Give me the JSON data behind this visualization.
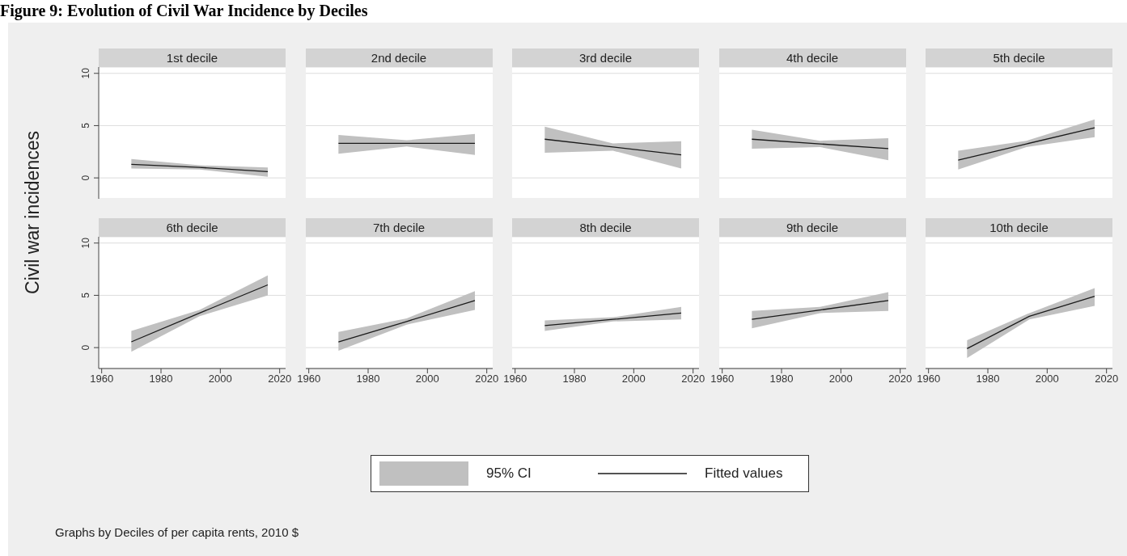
{
  "chart_data": [
    {
      "type": "line",
      "title": "1st decile",
      "x": [
        1970,
        1993,
        2016
      ],
      "xlim": [
        1959,
        2022
      ],
      "xticks": [
        1960,
        1980,
        2000,
        2020
      ],
      "ylim": [
        -2,
        10.6
      ],
      "yticks": [
        0,
        5,
        10
      ],
      "grid": "y",
      "tick_labels": "y",
      "ylabel": "Civil war incidences",
      "annotations": [
        "Figure 9: Evolution of Civil War Incidence by Deciles"
      ],
      "series": [
        {
          "color": "#1a1a1a",
          "values": [
            1.3,
            1.0,
            0.6
          ],
          "lower": [
            0.9,
            0.8,
            0.1
          ],
          "upper": [
            1.8,
            1.2,
            1.0
          ]
        }
      ]
    },
    {
      "type": "line",
      "title": "2nd decile",
      "x": [
        1970,
        1993,
        2016
      ],
      "xlim": [
        1959,
        2022
      ],
      "xticks": [
        1960,
        1980,
        2000,
        2020
      ],
      "ylim": [
        -2,
        10.6
      ],
      "yticks": [
        0,
        5,
        10
      ],
      "grid": "y",
      "tick_labels": false,
      "series": [
        {
          "color": "#1a1a1a",
          "values": [
            3.3,
            3.3,
            3.3
          ],
          "lower": [
            2.3,
            3.0,
            2.2
          ],
          "upper": [
            4.1,
            3.6,
            4.2
          ]
        }
      ]
    },
    {
      "type": "line",
      "title": "3rd decile",
      "x": [
        1970,
        1993,
        2016
      ],
      "xlim": [
        1959,
        2022
      ],
      "xticks": [
        1960,
        1980,
        2000,
        2020
      ],
      "ylim": [
        -2,
        10.6
      ],
      "yticks": [
        0,
        5,
        10
      ],
      "grid": "y",
      "tick_labels": false,
      "series": [
        {
          "color": "#1a1a1a",
          "values": [
            3.7,
            2.95,
            2.2
          ],
          "lower": [
            2.4,
            2.6,
            0.9
          ],
          "upper": [
            4.9,
            3.3,
            3.5
          ]
        }
      ]
    },
    {
      "type": "line",
      "title": "4th decile",
      "x": [
        1970,
        1993,
        2016
      ],
      "xlim": [
        1959,
        2022
      ],
      "xticks": [
        1960,
        1980,
        2000,
        2020
      ],
      "ylim": [
        -2,
        10.6
      ],
      "yticks": [
        0,
        5,
        10
      ],
      "grid": "y",
      "tick_labels": false,
      "series": [
        {
          "color": "#1a1a1a",
          "values": [
            3.7,
            3.25,
            2.8
          ],
          "lower": [
            2.8,
            2.95,
            1.7
          ],
          "upper": [
            4.6,
            3.55,
            3.8
          ]
        }
      ]
    },
    {
      "type": "line",
      "title": "5th decile",
      "x": [
        1970,
        1993,
        2016
      ],
      "xlim": [
        1959,
        2022
      ],
      "xticks": [
        1960,
        1980,
        2000,
        2020
      ],
      "ylim": [
        -2,
        10.6
      ],
      "yticks": [
        0,
        5,
        10
      ],
      "grid": "y",
      "tick_labels": false,
      "series": [
        {
          "color": "#1a1a1a",
          "values": [
            1.7,
            3.25,
            4.8
          ],
          "lower": [
            0.8,
            2.95,
            3.9
          ],
          "upper": [
            2.6,
            3.55,
            5.6
          ]
        }
      ]
    },
    {
      "type": "line",
      "title": "6th decile",
      "x": [
        1970,
        1993,
        2016
      ],
      "xlim": [
        1959,
        2022
      ],
      "xticks": [
        1960,
        1980,
        2000,
        2020
      ],
      "ylim": [
        -2,
        10.6
      ],
      "yticks": [
        0,
        5,
        10
      ],
      "grid": "y",
      "series": [
        {
          "color": "#1a1a1a",
          "values": [
            0.55,
            3.3,
            6.0
          ],
          "lower": [
            -0.4,
            3.0,
            5.0
          ],
          "upper": [
            1.6,
            3.6,
            6.9
          ]
        }
      ]
    },
    {
      "type": "line",
      "title": "7th decile",
      "x": [
        1970,
        1993,
        2016
      ],
      "xlim": [
        1959,
        2022
      ],
      "xticks": [
        1960,
        1980,
        2000,
        2020
      ],
      "ylim": [
        -2,
        10.6
      ],
      "yticks": [
        0,
        5,
        10
      ],
      "grid": "y",
      "tick_labels": "x",
      "series": [
        {
          "color": "#1a1a1a",
          "values": [
            0.55,
            2.5,
            4.5
          ],
          "lower": [
            -0.3,
            2.2,
            3.6
          ],
          "upper": [
            1.5,
            2.8,
            5.4
          ]
        }
      ]
    },
    {
      "type": "line",
      "title": "8th decile",
      "x": [
        1970,
        1993,
        2016
      ],
      "xlim": [
        1959,
        2022
      ],
      "xticks": [
        1960,
        1980,
        2000,
        2020
      ],
      "ylim": [
        -2,
        10.6
      ],
      "yticks": [
        0,
        5,
        10
      ],
      "grid": "y",
      "tick_labels": "x",
      "series": [
        {
          "color": "#1a1a1a",
          "values": [
            2.1,
            2.7,
            3.3
          ],
          "lower": [
            1.6,
            2.5,
            2.7
          ],
          "upper": [
            2.6,
            2.9,
            3.9
          ]
        }
      ]
    },
    {
      "type": "line",
      "title": "9th decile",
      "x": [
        1970,
        1993,
        2016
      ],
      "xlim": [
        1959,
        2022
      ],
      "xticks": [
        1960,
        1980,
        2000,
        2020
      ],
      "ylim": [
        -2,
        10.6
      ],
      "yticks": [
        0,
        5,
        10
      ],
      "grid": "y",
      "tick_labels": "x",
      "series": [
        {
          "color": "#1a1a1a",
          "values": [
            2.7,
            3.6,
            4.5
          ],
          "lower": [
            1.85,
            3.3,
            3.5
          ],
          "upper": [
            3.5,
            3.9,
            5.3
          ]
        }
      ]
    },
    {
      "type": "line",
      "title": "10th decile",
      "x": [
        1973,
        1994,
        2016
      ],
      "xlim": [
        1959,
        2022
      ],
      "xticks": [
        1960,
        1980,
        2000,
        2020
      ],
      "ylim": [
        -2,
        10.6
      ],
      "yticks": [
        0,
        5,
        10
      ],
      "grid": "y",
      "tick_labels": "x",
      "legend": "bottom",
      "annotations": [
        "95% CI",
        "Graphs by Deciles of per capita rents, 2010 $"
      ],
      "series": [
        {
          "name": "Fitted values",
          "color": "#1a1a1a",
          "values": [
            -0.1,
            3.0,
            4.9
          ],
          "lower": [
            -1.0,
            2.7,
            4.0
          ],
          "upper": [
            0.7,
            3.3,
            5.7
          ]
        }
      ]
    }
  ]
}
